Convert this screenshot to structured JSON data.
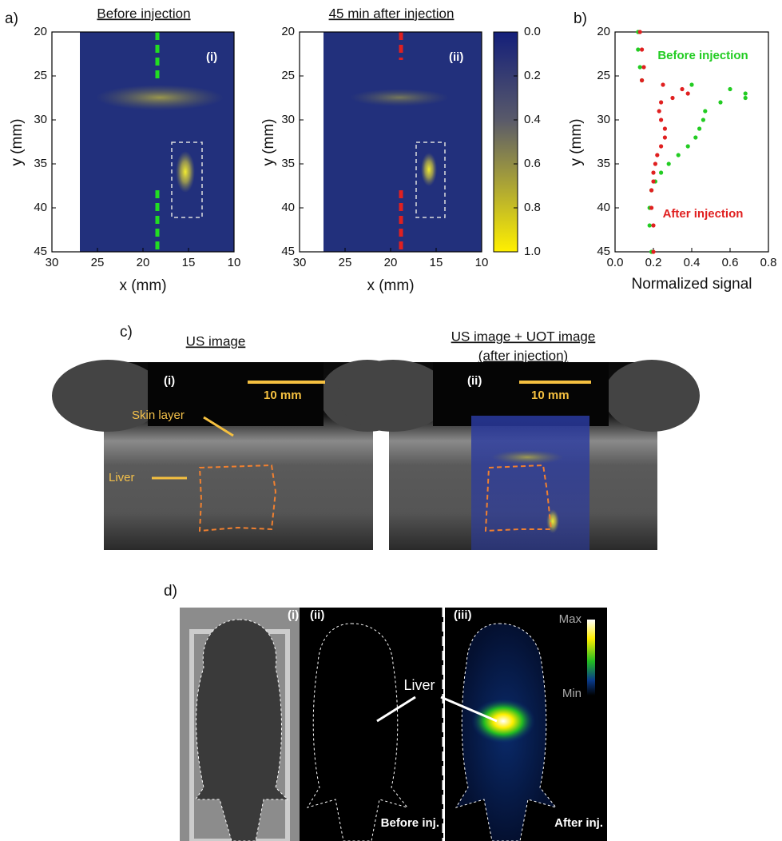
{
  "panel_a": {
    "label": "a)",
    "plots": [
      {
        "title": "Before injection",
        "tag": "(i)",
        "x_label": "x (mm)",
        "y_label": "y (mm)"
      },
      {
        "title": "45 min after injection",
        "tag": "(ii)",
        "x_label": "x (mm)",
        "y_label": "y (mm)"
      }
    ],
    "xlim": [
      30,
      10
    ],
    "xticks": [
      30,
      25,
      20,
      15,
      10
    ],
    "ylim": [
      20,
      45
    ],
    "yticks": [
      20,
      25,
      30,
      35,
      40,
      45
    ],
    "y_reversed": true,
    "colorbar": {
      "lim": [
        0,
        1
      ],
      "reversed": true,
      "ticks": [
        {
          "value": 0,
          "label": "0.0"
        },
        {
          "value": 0.2,
          "label": "0.2"
        },
        {
          "value": 0.4,
          "label": "0.4"
        },
        {
          "value": 0.6,
          "label": "0.6"
        },
        {
          "value": 0.8,
          "label": "0.8"
        },
        {
          "value": 1,
          "label": "1.0"
        }
      ]
    }
  },
  "chart_data": {
    "type": "scatter",
    "label": "b)",
    "x_label": "Normalized signal",
    "y_label": "y (mm)",
    "xlim": [
      0,
      0.8
    ],
    "xticks": [
      {
        "value": 0,
        "label": "0.0"
      },
      {
        "value": 0.2,
        "label": "0.2"
      },
      {
        "value": 0.4,
        "label": "0.4"
      },
      {
        "value": 0.6,
        "label": "0.6"
      },
      {
        "value": 0.8,
        "label": "0.8"
      }
    ],
    "ylim": [
      20,
      45
    ],
    "yticks": [
      20,
      25,
      30,
      35,
      40,
      45
    ],
    "y_reversed": true,
    "y": [
      20,
      22,
      24,
      25.5,
      26,
      26.5,
      27,
      27.5,
      28,
      29,
      30,
      31,
      32,
      33,
      34,
      35,
      36,
      37,
      38,
      40,
      42,
      45
    ],
    "series": [
      {
        "name": "Before injection",
        "color": "#22cc22",
        "values": [
          0.12,
          0.12,
          0.13,
          0.14,
          0.4,
          0.6,
          0.68,
          0.68,
          0.55,
          0.47,
          0.46,
          0.44,
          0.42,
          0.38,
          0.33,
          0.28,
          0.24,
          0.21,
          0.19,
          0.18,
          0.18,
          0.19
        ]
      },
      {
        "name": "After injection",
        "color": "#e02020",
        "values": [
          0.13,
          0.14,
          0.15,
          0.14,
          0.25,
          0.35,
          0.38,
          0.3,
          0.24,
          0.23,
          0.24,
          0.26,
          0.26,
          0.24,
          0.22,
          0.21,
          0.2,
          0.2,
          0.19,
          0.19,
          0.2,
          0.2
        ]
      }
    ]
  },
  "panel_c": {
    "label": "c)",
    "left": {
      "title": "US image",
      "tag": "(i)",
      "scale": "10 mm",
      "skin": "Skin layer",
      "liver": "Liver"
    },
    "right": {
      "title": "US image + UOT image",
      "subtitle": "(after injection)",
      "tag": "(ii)",
      "scale": "10 mm"
    }
  },
  "panel_d": {
    "label": "d)",
    "tags": [
      "(i)",
      "(ii)",
      "(iii)"
    ],
    "before": "Before inj.",
    "after": "After inj.",
    "liver": "Liver",
    "max": "Max",
    "min": "Min"
  }
}
